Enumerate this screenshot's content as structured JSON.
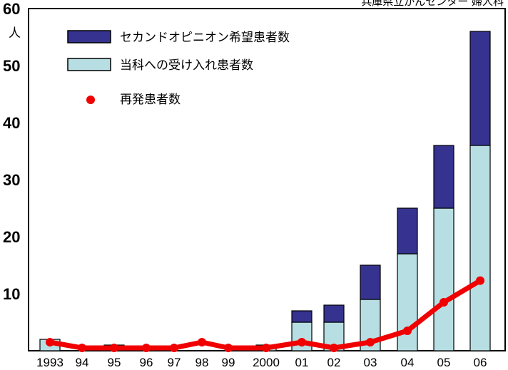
{
  "chart_data": {
    "type": "bar",
    "title": "",
    "source": "兵庫県立がんセンター 婦人科",
    "ylabel": "人",
    "ylim": [
      0,
      60
    ],
    "yticks": [
      "10",
      "20",
      "30",
      "40",
      "50",
      "60"
    ],
    "categories": [
      "1993",
      "94",
      "95",
      "96",
      "97",
      "98",
      "99",
      "2000",
      "01",
      "02",
      "03",
      "04",
      "05",
      "06"
    ],
    "series": [
      {
        "name": "当科への受け入れ患者数",
        "kind": "stacked-bar",
        "color": "#b7dfe3",
        "values": [
          2,
          0,
          1,
          0,
          0,
          0,
          0,
          1,
          5,
          5,
          9,
          17,
          25,
          36
        ]
      },
      {
        "name": "セカンドオピニオン希望患者数",
        "kind": "stacked-bar",
        "color": "#35338f",
        "values": [
          0,
          0,
          0,
          0,
          0,
          0,
          0,
          0,
          2,
          3,
          6,
          8,
          11,
          20
        ]
      },
      {
        "name": "再発患者数",
        "kind": "line",
        "color": "#f00000",
        "values": [
          1.5,
          0.5,
          0.5,
          0.5,
          0.5,
          1.5,
          0.5,
          0.5,
          1.5,
          0.5,
          1.5,
          3.5,
          8.5,
          12.3
        ]
      }
    ],
    "legend": "top-left",
    "grid": false
  }
}
